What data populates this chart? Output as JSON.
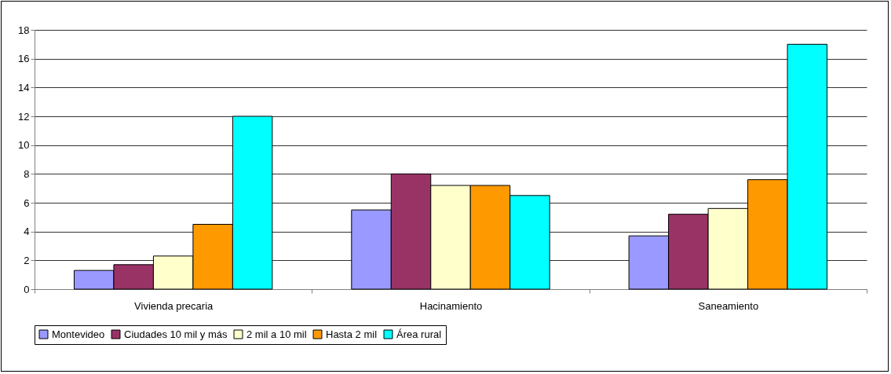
{
  "chart_data": {
    "type": "bar",
    "categories": [
      "Vivienda precaria",
      "Hacinamiento",
      "Saneamiento"
    ],
    "series": [
      {
        "name": "Montevideo",
        "color": "#9999ff",
        "values": [
          1.3,
          5.5,
          3.7
        ]
      },
      {
        "name": "Ciudades 10 mil y más",
        "color": "#993366",
        "values": [
          1.7,
          8,
          5.2
        ]
      },
      {
        "name": "2 mil a 10 mil",
        "color": "#ffffcc",
        "values": [
          2.3,
          7.2,
          5.6
        ]
      },
      {
        "name": "Hasta 2 mil",
        "color": "#ff9900",
        "values": [
          4.5,
          7.2,
          7.6
        ]
      },
      {
        "name": "Área rural",
        "color": "#00ffff",
        "values": [
          12,
          6.5,
          17
        ]
      }
    ],
    "ylim": [
      0,
      18
    ],
    "yticks": [
      0,
      2,
      4,
      6,
      8,
      10,
      12,
      14,
      16,
      18
    ],
    "grid": "y",
    "legend": "bottom"
  }
}
